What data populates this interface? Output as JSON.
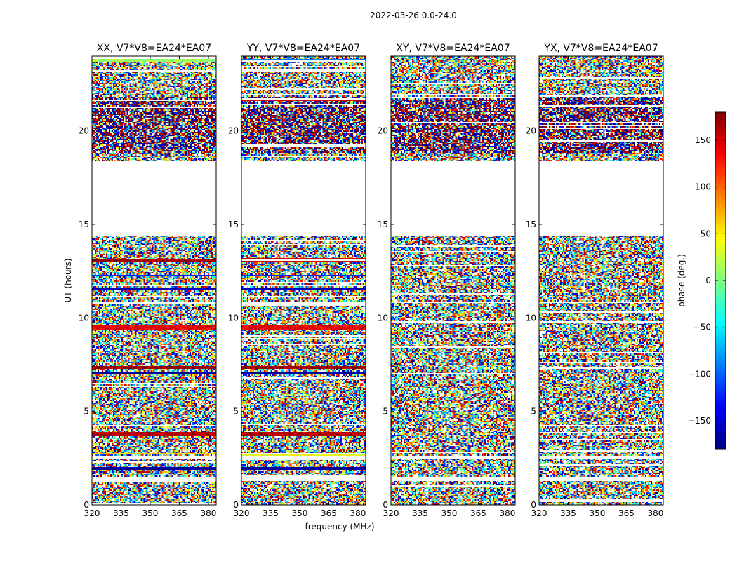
{
  "suptitle": "2022-03-26 0.0-24.0",
  "xlabel": "frequency (MHz)",
  "ylabel": "UT (hours)",
  "colorbar_label": "phase (deg.)",
  "colorbar_ticks": [
    "150",
    "100",
    "50",
    "0",
    "−50",
    "−100",
    "−150"
  ],
  "colormap": [
    "#00007f",
    "#0000ff",
    "#007fff",
    "#00ffff",
    "#7fff7f",
    "#ffff00",
    "#ff7f00",
    "#ff0000",
    "#7f0000"
  ],
  "chart_data": {
    "type": "heatmap",
    "xlim": [
      320,
      384
    ],
    "ylim": [
      0,
      24
    ],
    "x_ticks": [
      320,
      335,
      350,
      365,
      380
    ],
    "y_ticks": [
      0,
      5,
      10,
      15,
      20
    ],
    "color_range": [
      -180,
      180
    ],
    "colorbar_tick_values": [
      150,
      100,
      50,
      0,
      -50,
      -100,
      -150
    ],
    "panels": [
      {
        "title": "XX, V7*V8=EA24*EA07",
        "x_tick_labels": [
          "320",
          "335",
          "350",
          "365",
          "380"
        ],
        "y_tick_labels": [
          "0",
          "5",
          "10",
          "15",
          "20"
        ]
      },
      {
        "title": "YY, V7*V8=EA24*EA07",
        "x_tick_labels": [
          "320",
          "335",
          "350",
          "365",
          "380"
        ],
        "y_tick_labels": [
          "0",
          "5",
          "10",
          "15",
          "20"
        ]
      },
      {
        "title": "XY, V7*V8=EA24*EA07",
        "x_tick_labels": [
          "320",
          "335",
          "350",
          "365",
          "380"
        ],
        "y_tick_labels": [
          "0",
          "5",
          "10",
          "15",
          "20"
        ]
      },
      {
        "title": "YX, V7*V8=EA24*EA07",
        "x_tick_labels": [
          "320",
          "335",
          "350",
          "365",
          "380"
        ],
        "y_tick_labels": [
          "0",
          "5",
          "10",
          "15",
          "20"
        ]
      }
    ],
    "flagged_ut_ranges": [
      [
        14.4,
        18.4
      ],
      [
        1.3,
        1.5
      ],
      [
        2.5,
        2.6
      ],
      [
        10.8,
        10.9
      ]
    ],
    "coherent_bands": {
      "XX": [
        [
          23.7,
          23.85,
          10
        ],
        [
          21.6,
          21.7,
          150
        ],
        [
          13.0,
          13.1,
          170
        ],
        [
          12.2,
          12.3,
          -120
        ],
        [
          11.5,
          11.6,
          -160
        ],
        [
          9.4,
          9.6,
          140
        ],
        [
          7.3,
          7.4,
          170
        ],
        [
          7.0,
          7.1,
          -170
        ],
        [
          3.7,
          3.9,
          160
        ],
        [
          2.7,
          2.8,
          60
        ],
        [
          1.9,
          2.0,
          -170
        ]
      ],
      "YY": [
        [
          23.7,
          23.85,
          -90
        ],
        [
          21.6,
          21.7,
          150
        ],
        [
          13.0,
          13.2,
          150
        ],
        [
          12.2,
          12.3,
          -120
        ],
        [
          11.5,
          11.6,
          -160
        ],
        [
          9.4,
          9.6,
          140
        ],
        [
          7.3,
          7.4,
          170
        ],
        [
          7.0,
          7.1,
          -170
        ],
        [
          3.7,
          3.9,
          160
        ],
        [
          2.6,
          2.8,
          40
        ],
        [
          1.9,
          2.0,
          -170
        ]
      ],
      "XY": [],
      "YX": []
    },
    "dense_ut_range": [
      18.8,
      21.8
    ]
  }
}
